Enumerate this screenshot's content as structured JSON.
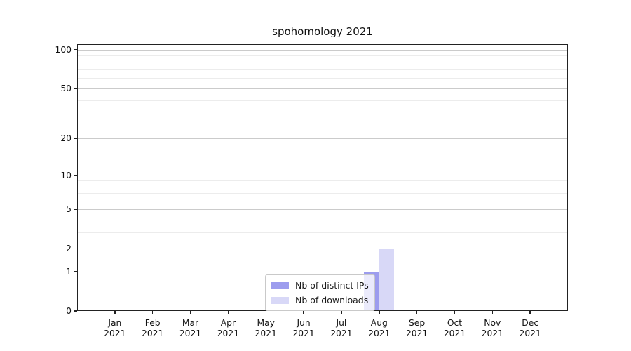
{
  "chart_data": {
    "type": "bar",
    "title": "spohomology 2021",
    "categories": [
      "Jan 2021",
      "Feb 2021",
      "Mar 2021",
      "Apr 2021",
      "May 2021",
      "Jun 2021",
      "Jul 2021",
      "Aug 2021",
      "Sep 2021",
      "Oct 2021",
      "Nov 2021",
      "Dec 2021"
    ],
    "series": [
      {
        "name": "Nb of distinct IPs",
        "color": "#9c9cee",
        "values": [
          0,
          0,
          0,
          0,
          0,
          0,
          0,
          1,
          0,
          0,
          0,
          0
        ]
      },
      {
        "name": "Nb of downloads",
        "color": "#d8d8f7",
        "values": [
          0,
          0,
          0,
          0,
          0,
          0,
          0,
          2,
          0,
          0,
          0,
          0
        ]
      }
    ],
    "xlabel": "",
    "ylabel": "",
    "yscale": "log10(1+y)",
    "ylim": [
      0,
      110
    ],
    "y_major_ticks": [
      0,
      1,
      2,
      5,
      10,
      20,
      50,
      100
    ],
    "y_minor_gridlines": [
      3,
      4,
      6,
      7,
      8,
      9,
      30,
      40,
      60,
      70,
      80,
      90
    ],
    "grid": "horizontal",
    "legend_position": "lower center-right inside plot",
    "axis_color": "#222222",
    "grid_major_color": "#cbcbcb",
    "grid_minor_color": "#ececec"
  }
}
